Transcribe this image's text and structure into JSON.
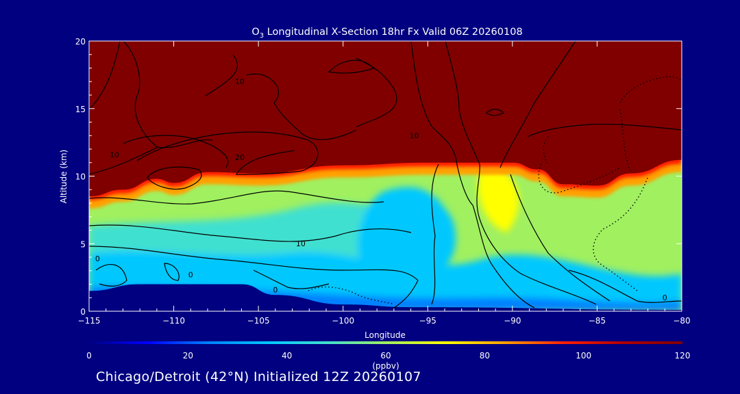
{
  "chart_data": {
    "type": "heatmap",
    "title_species": "O",
    "title_subscript": "3",
    "title_rest": " Longitudinal X-Section 18hr  Fx Valid 06Z 20260108",
    "xlabel": "Longitude",
    "ylabel": "Altitude (km)",
    "xlim": [
      -115,
      -80
    ],
    "ylim": [
      0,
      20
    ],
    "x_ticks": [
      -115,
      -110,
      -105,
      -100,
      -95,
      -90,
      -85,
      -80
    ],
    "x_tick_labels": [
      "−115",
      "−110",
      "−105",
      "−100",
      "−95",
      "−90",
      "−85",
      "−80"
    ],
    "y_ticks": [
      0,
      5,
      10,
      15,
      20
    ],
    "y_tick_labels": [
      "0",
      "5",
      "10",
      "15",
      "20"
    ],
    "colorbar": {
      "min": 0,
      "max": 120,
      "ticks": [
        0,
        20,
        40,
        60,
        80,
        100,
        120
      ],
      "tick_labels": [
        "0",
        "20",
        "40",
        "60",
        "80",
        "100",
        "120"
      ],
      "label": "(ppbv)",
      "colors": [
        "#000080",
        "#0000ff",
        "#0080ff",
        "#00c8ff",
        "#40e0d0",
        "#a0f060",
        "#ffff00",
        "#ffa000",
        "#ff2000",
        "#b00000",
        "#800000"
      ]
    },
    "tropopause_km": [
      {
        "lon": -115,
        "alt": 8.5
      },
      {
        "lon": -113,
        "alt": 9.0
      },
      {
        "lon": -111,
        "alt": 9.8
      },
      {
        "lon": -110,
        "alt": 9.5
      },
      {
        "lon": -108,
        "alt": 10.3
      },
      {
        "lon": -105,
        "alt": 10.2
      },
      {
        "lon": -100,
        "alt": 10.8
      },
      {
        "lon": -95,
        "alt": 11.0
      },
      {
        "lon": -90,
        "alt": 11.0
      },
      {
        "lon": -88.5,
        "alt": 10.5
      },
      {
        "lon": -87,
        "alt": 9.4
      },
      {
        "lon": -85,
        "alt": 9.3
      },
      {
        "lon": -83,
        "alt": 10.2
      },
      {
        "lon": -80,
        "alt": 11.2
      }
    ],
    "surface_km": [
      {
        "lon": -115,
        "alt": 1.5
      },
      {
        "lon": -112,
        "alt": 2.0
      },
      {
        "lon": -106,
        "alt": 2.0
      },
      {
        "lon": -104,
        "alt": 1.2
      },
      {
        "lon": -100,
        "alt": 0.5
      },
      {
        "lon": -96,
        "alt": 0.3
      },
      {
        "lon": -80,
        "alt": 0.1
      }
    ],
    "contour_labels": [
      {
        "text": "10",
        "lon": -106.1,
        "alt": 16.8
      },
      {
        "text": "10",
        "lon": -113.5,
        "alt": 11.4
      },
      {
        "text": "20",
        "lon": -106.1,
        "alt": 11.2
      },
      {
        "text": "10",
        "lon": -95.8,
        "alt": 12.8
      },
      {
        "text": "10",
        "lon": -102.5,
        "alt": 4.8
      },
      {
        "text": "0",
        "lon": -114.5,
        "alt": 3.7
      },
      {
        "text": "0",
        "lon": -109,
        "alt": 2.5
      },
      {
        "text": "0",
        "lon": -104,
        "alt": 1.4
      },
      {
        "text": "0",
        "lon": -81,
        "alt": 0.8
      }
    ],
    "annotation": "Chicago/Detroit (42°N) Initialized 12Z 20260107"
  }
}
